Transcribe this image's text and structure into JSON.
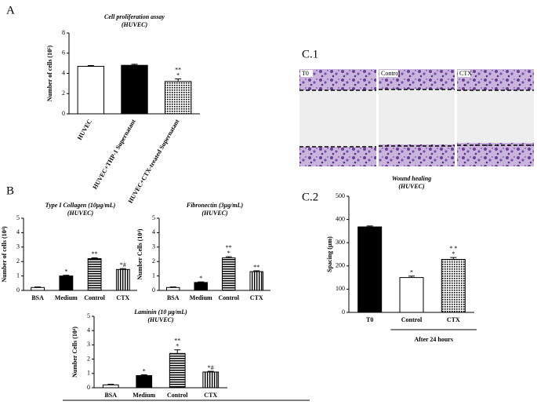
{
  "panels": {
    "a": "A",
    "b": "B",
    "c1": "C.1",
    "c2": "C.2"
  },
  "images": [
    {
      "label": "T0"
    },
    {
      "label": "Control"
    },
    {
      "label": "CTX"
    }
  ],
  "chart_data": [
    {
      "type": "bar",
      "title": "Cell proliferation assay",
      "subtitle": "(HUVEC)",
      "y_label": "Number of cells (10⁵)",
      "categories": [
        "HUVEC",
        "HUVEC+THP-1 Supernatant",
        "HUVEC+CTX-treated Supernatant"
      ],
      "values": [
        4.7,
        4.8,
        3.2
      ],
      "errors": [
        0.08,
        0.1,
        0.25
      ],
      "annotations": [
        null,
        null,
        [
          "**",
          "*"
        ]
      ],
      "fills": [
        "white",
        "black",
        "dots"
      ],
      "color": "#000000",
      "ylim": [
        0,
        8
      ],
      "yticks": [
        0,
        2,
        4,
        6,
        8
      ]
    },
    {
      "type": "bar",
      "title": "Type I Collagen (10μg/mL)",
      "subtitle": "(HUVEC)",
      "y_label": "Number of cells (10⁴)",
      "categories": [
        "BSA",
        "Medium",
        "Control",
        "CTX"
      ],
      "values": [
        0.2,
        1.0,
        2.2,
        1.45
      ],
      "errors": [
        0.04,
        0.05,
        0.06,
        0.06
      ],
      "annotations": [
        null,
        [
          "*"
        ],
        [
          "**"
        ],
        [
          "*#"
        ]
      ],
      "fills": [
        "white",
        "black",
        "hstripes",
        "vstripes"
      ],
      "color": "#000000",
      "ylim": [
        0,
        5
      ],
      "yticks": [
        0,
        1,
        2,
        3,
        4,
        5
      ]
    },
    {
      "type": "bar",
      "title": "Fibronectin (3μg/mL)",
      "subtitle": "(HUVEC)",
      "y_label": "Number Cells (10⁴)",
      "categories": [
        "BSA",
        "Medium",
        "Control",
        "CTX"
      ],
      "values": [
        0.2,
        0.55,
        2.25,
        1.3
      ],
      "errors": [
        0.04,
        0.04,
        0.08,
        0.06
      ],
      "annotations": [
        null,
        [
          "*"
        ],
        [
          "**",
          "*"
        ],
        [
          "**"
        ]
      ],
      "fills": [
        "white",
        "black",
        "hstripes",
        "vstripes"
      ],
      "color": "#000000",
      "ylim": [
        0,
        5
      ],
      "yticks": [
        0,
        1,
        2,
        3,
        4,
        5
      ]
    },
    {
      "type": "bar",
      "title": "Laminin (10 μg/mL)",
      "subtitle": "(HUVEC)",
      "y_label": "Number Cells (10⁴)",
      "categories": [
        "BSA",
        "Medium",
        "Control",
        "CTX"
      ],
      "values": [
        0.2,
        0.85,
        2.4,
        1.1
      ],
      "errors": [
        0.04,
        0.06,
        0.25,
        0.05
      ],
      "annotations": [
        null,
        [
          "*"
        ],
        [
          "**",
          "*"
        ],
        [
          "*#"
        ]
      ],
      "fills": [
        "white",
        "black",
        "hstripes",
        "vstripes"
      ],
      "color": "#000000",
      "ylim": [
        0,
        5
      ],
      "yticks": [
        0,
        1,
        2,
        3,
        4,
        5
      ]
    },
    {
      "type": "bar",
      "title": "Wound healing",
      "subtitle": "(HUVEC)",
      "y_label": "Spacing (µm)",
      "categories": [
        "T0",
        "Control",
        "CTX"
      ],
      "group_label": "After 24 hours",
      "values": [
        368,
        150,
        228
      ],
      "errors": [
        4,
        6,
        8
      ],
      "annotations": [
        null,
        [
          "*"
        ],
        [
          "* *",
          "*"
        ]
      ],
      "fills": [
        "black",
        "white",
        "dots"
      ],
      "color": "#000000",
      "ylim": [
        0,
        500
      ],
      "yticks": [
        0,
        100,
        200,
        300,
        400,
        500
      ]
    }
  ]
}
